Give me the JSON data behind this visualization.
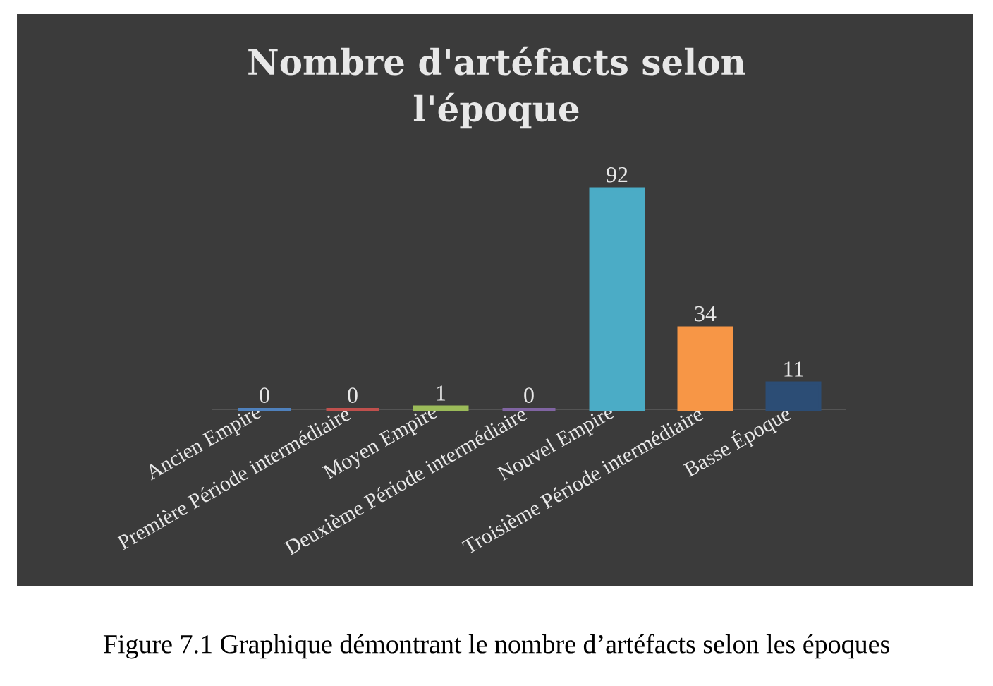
{
  "chart_data": {
    "type": "bar",
    "title": "Nombre d'artéfacts selon l'époque",
    "categories": [
      "Ancien Empire",
      "Première Période intermédiaire",
      "Moyen Empire",
      "Deuxième Période intermédiaire",
      "Nouvel Empire",
      "Troisième Période intermédiaire",
      "Basse Époque"
    ],
    "values": [
      0,
      0,
      1,
      0,
      92,
      34,
      11
    ],
    "colors": [
      "#4f81bd",
      "#c0504d",
      "#9bbb59",
      "#8064a2",
      "#4bacc6",
      "#f79646",
      "#2c4d75"
    ],
    "data_labels": true,
    "annotations": [
      "Figure 7.1 Graphique démontrant le nombre d’artéfacts selon les époques"
    ]
  }
}
